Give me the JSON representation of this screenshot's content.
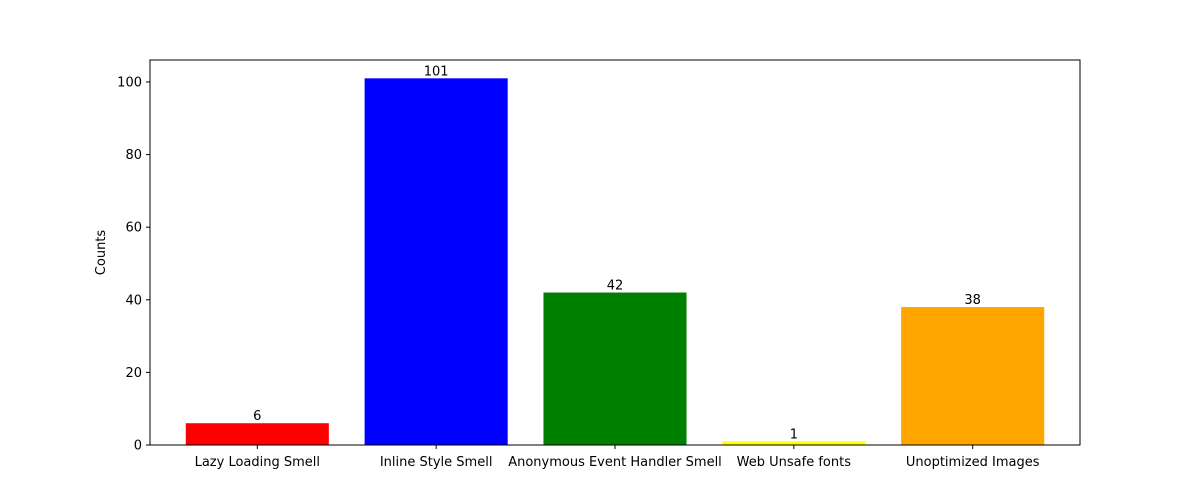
{
  "chart_data": {
    "type": "bar",
    "title": "",
    "xlabel": "",
    "ylabel": "Counts",
    "categories": [
      "Lazy Loading Smell",
      "Inline Style Smell",
      "Anonymous Event Handler Smell",
      "Web Unsafe fonts",
      "Unoptimized Images"
    ],
    "values": [
      6,
      101,
      42,
      1,
      38
    ],
    "value_labels": [
      "6",
      "101",
      "42",
      "1",
      "38"
    ],
    "colors": [
      "#ff0000",
      "#0000ff",
      "#008000",
      "#ffff00",
      "#ffa500"
    ],
    "ylim": [
      0,
      106.05
    ],
    "yticks": [
      0,
      20,
      40,
      60,
      80,
      100
    ],
    "ytick_labels": [
      "0",
      "20",
      "40",
      "60",
      "80",
      "100"
    ],
    "grid": false,
    "legend": "none"
  }
}
